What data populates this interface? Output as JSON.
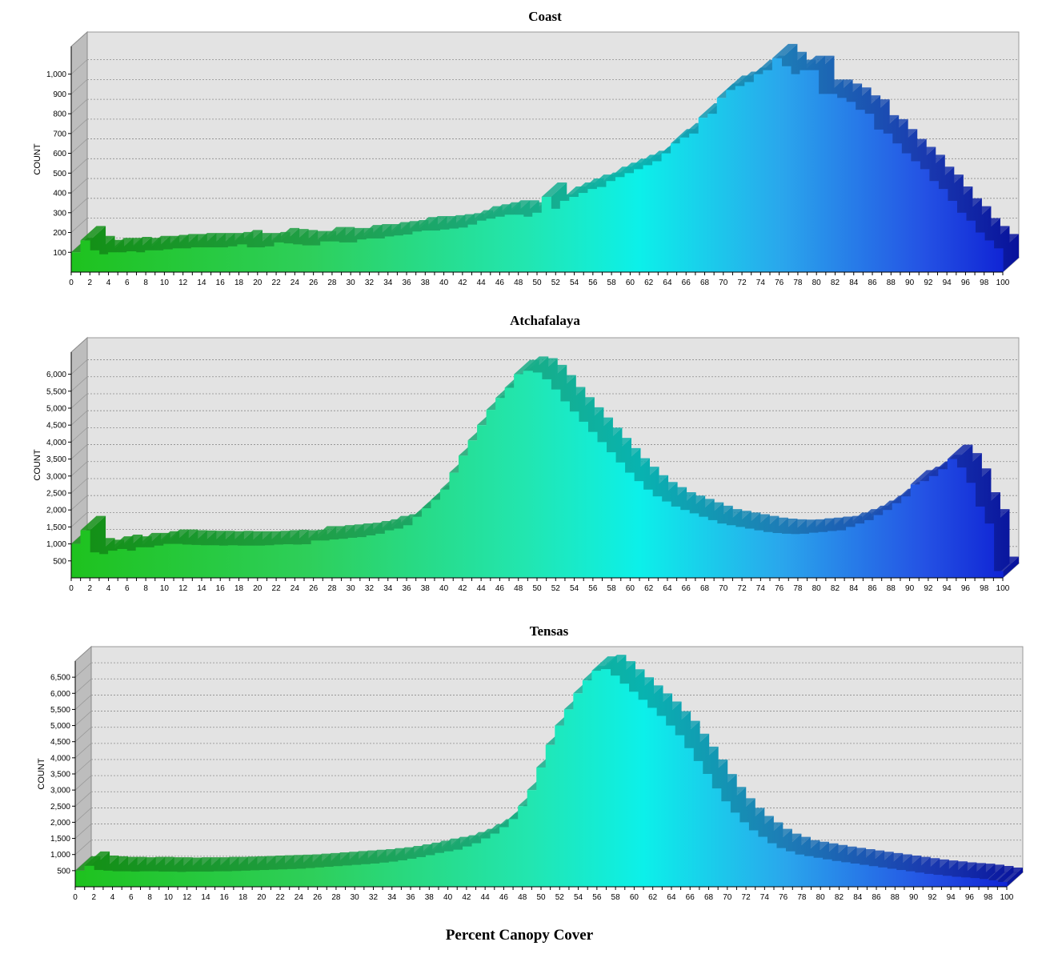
{
  "xlabel": "Percent Canopy Cover",
  "chart_data": [
    {
      "type": "bar",
      "title": "Coast",
      "ylabel": "COUNT",
      "ylim": [
        0,
        1140
      ],
      "yticks": [
        100,
        200,
        300,
        400,
        500,
        600,
        700,
        800,
        900,
        1000
      ],
      "ytick_labels": [
        "100",
        "200",
        "300",
        "400",
        "500",
        "600",
        "700",
        "800",
        "900",
        "1,000"
      ],
      "x": [
        0,
        1,
        2,
        3,
        4,
        5,
        6,
        7,
        8,
        9,
        10,
        11,
        12,
        13,
        14,
        15,
        16,
        17,
        18,
        19,
        20,
        21,
        22,
        23,
        24,
        25,
        26,
        27,
        28,
        29,
        30,
        31,
        32,
        33,
        34,
        35,
        36,
        37,
        38,
        39,
        40,
        41,
        42,
        43,
        44,
        45,
        46,
        47,
        48,
        49,
        50,
        51,
        52,
        53,
        54,
        55,
        56,
        57,
        58,
        59,
        60,
        61,
        62,
        63,
        64,
        65,
        66,
        67,
        68,
        69,
        70,
        71,
        72,
        73,
        74,
        75,
        76,
        77,
        78,
        79,
        80,
        81,
        82,
        83,
        84,
        85,
        86,
        87,
        88,
        89,
        90,
        91,
        92,
        93,
        94,
        95,
        96,
        97,
        98,
        99,
        100
      ],
      "values": [
        100,
        160,
        110,
        90,
        100,
        100,
        105,
        100,
        110,
        110,
        115,
        120,
        120,
        125,
        125,
        125,
        125,
        130,
        140,
        125,
        125,
        130,
        150,
        145,
        140,
        135,
        135,
        155,
        155,
        150,
        150,
        165,
        170,
        170,
        180,
        185,
        190,
        205,
        210,
        210,
        215,
        220,
        225,
        240,
        260,
        270,
        280,
        290,
        290,
        280,
        300,
        380,
        320,
        360,
        380,
        400,
        420,
        430,
        460,
        480,
        500,
        520,
        540,
        560,
        600,
        650,
        680,
        700,
        780,
        800,
        880,
        920,
        940,
        960,
        1000,
        1020,
        1080,
        1040,
        1000,
        1020,
        1020,
        900,
        900,
        880,
        860,
        820,
        800,
        720,
        700,
        650,
        600,
        560,
        520,
        460,
        420,
        360,
        300,
        260,
        200,
        160,
        120
      ]
    },
    {
      "type": "bar",
      "title": "Atchafalaya",
      "ylabel": "COUNT",
      "ylim": [
        0,
        6650
      ],
      "yticks": [
        500,
        1000,
        1500,
        2000,
        2500,
        3000,
        3500,
        4000,
        4500,
        5000,
        5500,
        6000
      ],
      "ytick_labels": [
        "500",
        "1,000",
        "1,500",
        "2,000",
        "2,500",
        "3,000",
        "3,500",
        "4,000",
        "4,500",
        "5,000",
        "5,500",
        "6,000"
      ],
      "x": [
        0,
        1,
        2,
        3,
        4,
        5,
        6,
        7,
        8,
        9,
        10,
        11,
        12,
        13,
        14,
        15,
        16,
        17,
        18,
        19,
        20,
        21,
        22,
        23,
        24,
        25,
        26,
        27,
        28,
        29,
        30,
        31,
        32,
        33,
        34,
        35,
        36,
        37,
        38,
        39,
        40,
        41,
        42,
        43,
        44,
        45,
        46,
        47,
        48,
        49,
        50,
        51,
        52,
        53,
        54,
        55,
        56,
        57,
        58,
        59,
        60,
        61,
        62,
        63,
        64,
        65,
        66,
        67,
        68,
        69,
        70,
        71,
        72,
        73,
        74,
        75,
        76,
        77,
        78,
        79,
        80,
        81,
        82,
        83,
        84,
        85,
        86,
        87,
        88,
        89,
        90,
        91,
        92,
        93,
        94,
        95,
        96,
        97,
        98,
        99,
        100
      ],
      "values": [
        1000,
        1400,
        750,
        700,
        800,
        850,
        800,
        900,
        900,
        950,
        1000,
        1000,
        980,
        970,
        960,
        960,
        950,
        960,
        950,
        950,
        950,
        960,
        980,
        990,
        980,
        990,
        1100,
        1100,
        1130,
        1150,
        1180,
        1200,
        1250,
        1300,
        1400,
        1450,
        1550,
        1800,
        2050,
        2300,
        2600,
        3100,
        3600,
        4050,
        4500,
        4950,
        5300,
        5600,
        6000,
        6100,
        6050,
        5850,
        5550,
        5200,
        4900,
        4600,
        4300,
        4000,
        3700,
        3400,
        3100,
        2850,
        2600,
        2400,
        2250,
        2100,
        2000,
        1900,
        1800,
        1700,
        1600,
        1550,
        1500,
        1450,
        1400,
        1350,
        1320,
        1300,
        1290,
        1300,
        1330,
        1350,
        1380,
        1400,
        1500,
        1600,
        1700,
        1850,
        2000,
        2200,
        2400,
        2750,
        2850,
        3000,
        3200,
        3500,
        3250,
        2800,
        2100,
        1600,
        200
      ]
    },
    {
      "type": "bar",
      "title": "Tensas",
      "ylabel": "COUNT",
      "ylim": [
        0,
        7000
      ],
      "yticks": [
        500,
        1000,
        1500,
        2000,
        2500,
        3000,
        3500,
        4000,
        4500,
        5000,
        5500,
        6000,
        6500
      ],
      "ytick_labels": [
        "500",
        "1,000",
        "1,500",
        "2,000",
        "2,500",
        "3,000",
        "3,500",
        "4,000",
        "4,500",
        "5,000",
        "5,500",
        "6,000",
        "6,500"
      ],
      "x": [
        0,
        1,
        2,
        3,
        4,
        5,
        6,
        7,
        8,
        9,
        10,
        11,
        12,
        13,
        14,
        15,
        16,
        17,
        18,
        19,
        20,
        21,
        22,
        23,
        24,
        25,
        26,
        27,
        28,
        29,
        30,
        31,
        32,
        33,
        34,
        35,
        36,
        37,
        38,
        39,
        40,
        41,
        42,
        43,
        44,
        45,
        46,
        47,
        48,
        49,
        50,
        51,
        52,
        53,
        54,
        55,
        56,
        57,
        58,
        59,
        60,
        61,
        62,
        63,
        64,
        65,
        66,
        67,
        68,
        69,
        70,
        71,
        72,
        73,
        74,
        75,
        76,
        77,
        78,
        79,
        80,
        81,
        82,
        83,
        84,
        85,
        86,
        87,
        88,
        89,
        90,
        91,
        92,
        93,
        94,
        95,
        96,
        97,
        98,
        99,
        100
      ],
      "values": [
        500,
        650,
        520,
        500,
        480,
        480,
        470,
        480,
        480,
        470,
        470,
        460,
        470,
        470,
        470,
        480,
        480,
        490,
        500,
        510,
        520,
        530,
        540,
        550,
        560,
        580,
        600,
        620,
        640,
        660,
        680,
        700,
        720,
        750,
        780,
        820,
        870,
        920,
        980,
        1050,
        1100,
        1150,
        1250,
        1350,
        1500,
        1650,
        1850,
        2100,
        2500,
        3000,
        3700,
        4400,
        5000,
        5500,
        6000,
        6400,
        6700,
        6750,
        6550,
        6300,
        6050,
        5800,
        5550,
        5300,
        5000,
        4700,
        4300,
        3900,
        3500,
        3050,
        2650,
        2300,
        2000,
        1750,
        1550,
        1350,
        1200,
        1100,
        1000,
        950,
        900,
        850,
        800,
        760,
        720,
        680,
        640,
        600,
        560,
        520,
        480,
        440,
        400,
        370,
        340,
        310,
        290,
        270,
        240,
        200,
        150
      ]
    }
  ]
}
